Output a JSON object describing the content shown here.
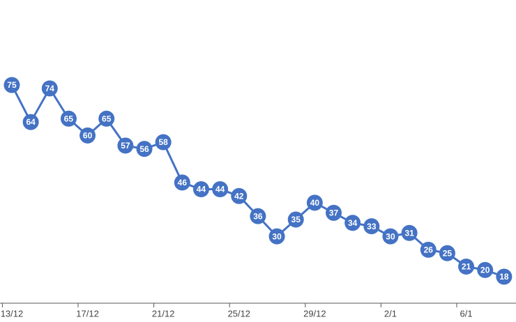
{
  "chart_data": {
    "type": "line",
    "categories": [
      "13/12",
      null,
      null,
      null,
      "17/12",
      null,
      null,
      null,
      "21/12",
      null,
      null,
      null,
      "25/12",
      null,
      null,
      null,
      "29/12",
      null,
      null,
      null,
      "2/1",
      null,
      null,
      null,
      "6/1",
      null,
      null
    ],
    "series": [
      {
        "color": "#4472c4",
        "values": [
          75,
          64,
          74,
          65,
          60,
          65,
          57,
          56,
          58,
          46,
          44,
          44,
          42,
          36,
          30,
          35,
          40,
          37,
          34,
          33,
          30,
          31,
          26,
          25,
          21,
          20,
          18
        ]
      }
    ]
  }
}
